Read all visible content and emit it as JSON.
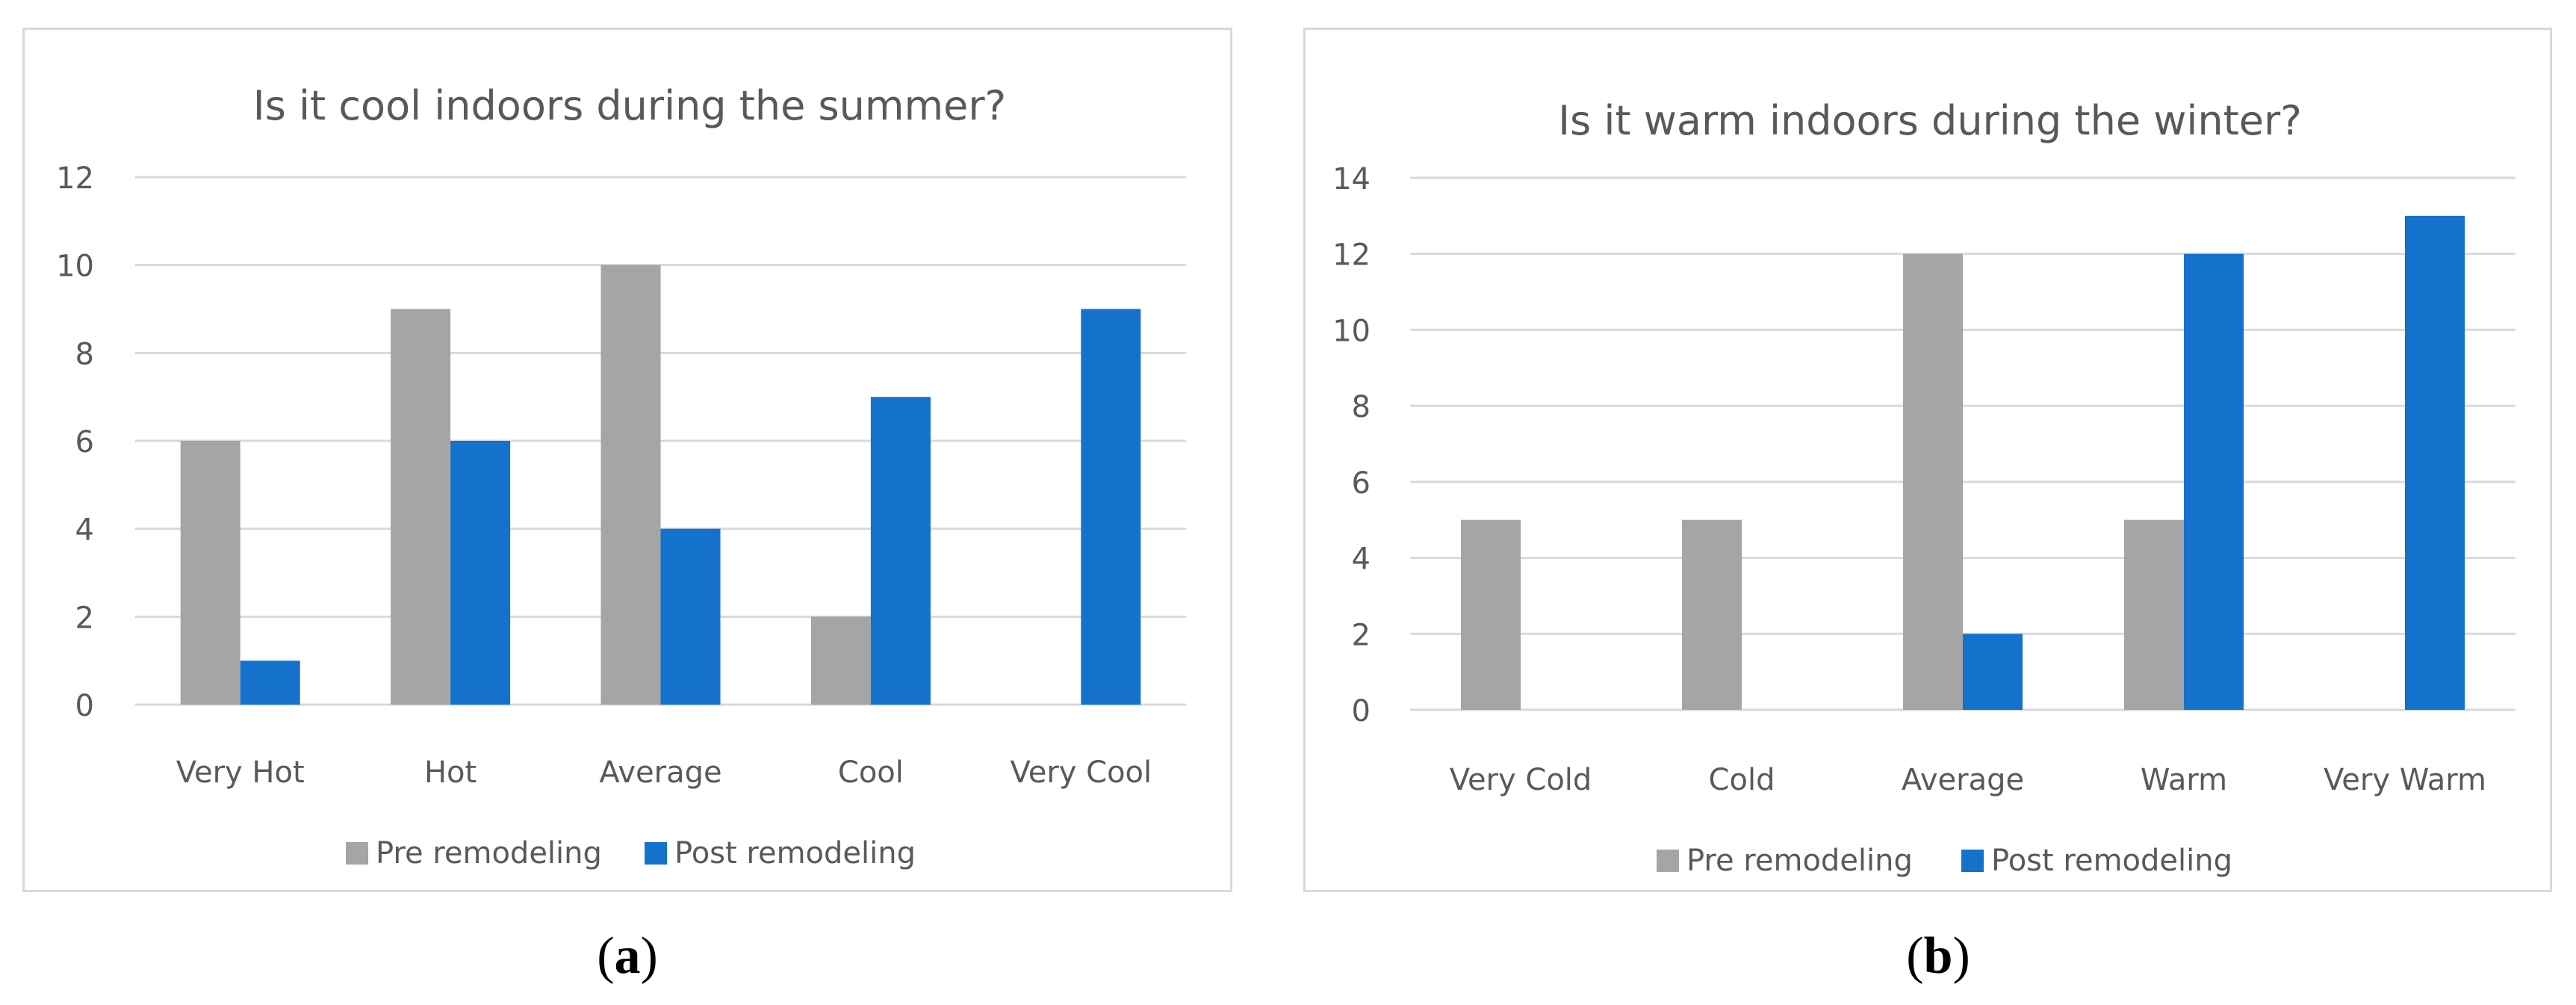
{
  "chart_data": [
    {
      "type": "bar",
      "title": "Is it cool indoors during the summer?",
      "categories": [
        "Very Hot",
        "Hot",
        "Average",
        "Cool",
        "Very Cool"
      ],
      "series": [
        {
          "name": "Pre remodeling",
          "values": [
            6,
            9,
            10,
            2,
            0
          ],
          "color": "#a5a5a5"
        },
        {
          "name": "Post remodeling",
          "values": [
            1,
            6,
            4,
            7,
            9
          ],
          "color": "#1572cc"
        }
      ],
      "ylim": [
        0,
        12
      ],
      "yticks": [
        0,
        2,
        4,
        6,
        8,
        10,
        12
      ],
      "xlabel": "",
      "ylabel": "",
      "grid": true,
      "legend": "bottom",
      "caption_letter": "a"
    },
    {
      "type": "bar",
      "title": "Is it warm indoors during the winter?",
      "categories": [
        "Very Cold",
        "Cold",
        "Average",
        "Warm",
        "Very Warm"
      ],
      "series": [
        {
          "name": "Pre remodeling",
          "values": [
            5,
            5,
            12,
            5,
            0
          ],
          "color": "#a5a5a5"
        },
        {
          "name": "Post remodeling",
          "values": [
            0,
            0,
            2,
            12,
            13
          ],
          "color": "#1572cc"
        }
      ],
      "ylim": [
        0,
        14
      ],
      "yticks": [
        0,
        2,
        4,
        6,
        8,
        10,
        12,
        14
      ],
      "xlabel": "",
      "ylabel": "",
      "grid": true,
      "legend": "bottom",
      "caption_letter": "b"
    }
  ],
  "colors": {
    "grid": "#d9d9d9",
    "axis_text": "#595959",
    "title_text": "#595959"
  }
}
